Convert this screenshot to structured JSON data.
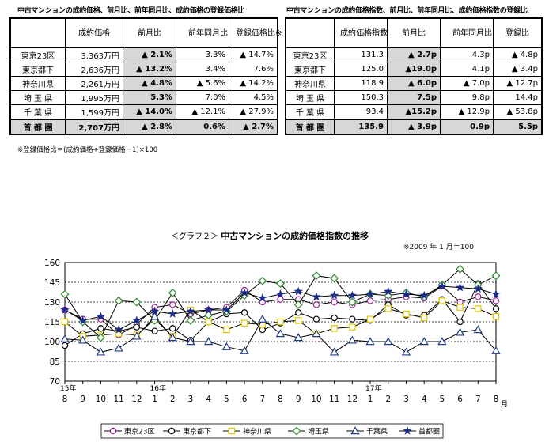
{
  "table1": {
    "title": "中古マンションの成約価格、前月比、前年同月比、成約価格の登録価格比",
    "headers": [
      "",
      "成約価格",
      "前月比",
      "前年同月比",
      "登録価格比※"
    ],
    "rows": [
      {
        "area": "東京23区",
        "price": "3,363万円",
        "mom": "▲ 2.1%",
        "yoy": "3.3%",
        "reg": "▲ 14.7%"
      },
      {
        "area": "東京都下",
        "price": "2,636万円",
        "mom": "▲ 13.2%",
        "yoy": "3.4%",
        "reg": "7.6%"
      },
      {
        "area": "神奈川県",
        "price": "2,261万円",
        "mom": "▲ 4.8%",
        "yoy": "▲ 5.6%",
        "reg": "▲ 14.2%"
      },
      {
        "area": "埼 玉 県",
        "price": "1,995万円",
        "mom": "5.3%",
        "yoy": "7.0%",
        "reg": "4.5%"
      },
      {
        "area": "千 葉 県",
        "price": "1,599万円",
        "mom": "▲ 14.0%",
        "yoy": "▲ 12.1%",
        "reg": "▲ 27.9%"
      },
      {
        "area": "首 都 圏",
        "price": "2,707万円",
        "mom": "▲ 2.8%",
        "yoy": "0.6%",
        "reg": "▲ 2.7%"
      }
    ],
    "note": "※登録価格比＝(成約価格÷登録価格－1)×100"
  },
  "table2": {
    "title": "中古マンションの成約価格指数、前月比、前年同月比、成約価格指数の登録比",
    "headers": [
      "",
      "成約価格指数",
      "前月比",
      "前年同月比",
      "登録比"
    ],
    "rows": [
      {
        "area": "東京23区",
        "index": "131.3",
        "mom": "▲ 2.7p",
        "yoy": "4.3p",
        "reg": "▲ 4.8p"
      },
      {
        "area": "東京都下",
        "index": "125.0",
        "mom": "▲19.0p",
        "yoy": "4.1p",
        "reg": "▲ 3.4p"
      },
      {
        "area": "神奈川県",
        "index": "118.9",
        "mom": "▲ 6.0p",
        "yoy": "▲ 7.0p",
        "reg": "▲ 12.7p"
      },
      {
        "area": "埼 玉 県",
        "index": "150.3",
        "mom": "7.5p",
        "yoy": "9.8p",
        "reg": "14.4p"
      },
      {
        "area": "千 葉 県",
        "index": "93.4",
        "mom": "▲15.2p",
        "yoy": "▲ 12.9p",
        "reg": "▲ 53.8p"
      },
      {
        "area": "首 都 圏",
        "index": "135.9",
        "mom": "▲ 3.9p",
        "yoy": "0.9p",
        "reg": "5.5p"
      }
    ]
  },
  "graph": {
    "label": "＜グラフ２＞",
    "title": "中古マンションの成約価格指数の推移",
    "base_note": "※2009 年 1 月＝100"
  },
  "chart_data": {
    "type": "line",
    "title": "中古マンションの成約価格指数の推移",
    "ylim": [
      70,
      160
    ],
    "yticks": [
      70,
      85,
      100,
      115,
      130,
      145,
      160
    ],
    "categories": [
      "8",
      "9",
      "10",
      "11",
      "12",
      "1",
      "2",
      "3",
      "4",
      "5",
      "6",
      "7",
      "8",
      "9",
      "10",
      "11",
      "12",
      "1",
      "2",
      "3",
      "4",
      "5",
      "6",
      "7",
      "8"
    ],
    "year_labels": [
      {
        "index": 0,
        "text": "15年"
      },
      {
        "index": 5,
        "text": "16年"
      },
      {
        "index": 17,
        "text": "17年"
      }
    ],
    "x_unit": "月",
    "series": [
      {
        "name": "東京23区",
        "color": "#9b1f9b",
        "marker": "circle-open",
        "values": [
          124,
          117,
          117,
          105,
          113,
          126,
          128,
          121,
          124,
          126,
          139,
          130,
          132,
          132,
          128,
          130,
          128,
          131,
          132,
          134,
          133,
          142,
          130,
          134,
          131
        ]
      },
      {
        "name": "東京都下",
        "color": "#000000",
        "marker": "circle-open",
        "values": [
          97,
          106,
          110,
          108,
          111,
          108,
          110,
          101,
          115,
          121,
          122,
          109,
          114,
          122,
          117,
          118,
          117,
          116,
          128,
          120,
          120,
          132,
          115,
          144,
          125
        ]
      },
      {
        "name": "神奈川県",
        "color": "#e0c800",
        "marker": "square-open",
        "values": [
          115,
          104,
          105,
          106,
          105,
          117,
          104,
          124,
          115,
          109,
          114,
          113,
          115,
          116,
          106,
          110,
          111,
          117,
          125,
          121,
          118,
          131,
          126,
          125,
          119
        ]
      },
      {
        "name": "埼玉県",
        "color": "#2e8b2e",
        "marker": "diamond-open",
        "values": [
          136,
          115,
          103,
          131,
          130,
          116,
          137,
          116,
          120,
          123,
          135,
          146,
          144,
          128,
          150,
          148,
          130,
          136,
          135,
          137,
          134,
          143,
          155,
          143,
          150
        ]
      },
      {
        "name": "千葉県",
        "color": "#1f3a8a",
        "marker": "triangle-open",
        "values": [
          102,
          101,
          92,
          95,
          104,
          119,
          103,
          100,
          100,
          96,
          93,
          117,
          106,
          103,
          106,
          92,
          101,
          100,
          100,
          92,
          100,
          100,
          107,
          109,
          93
        ]
      },
      {
        "name": "首都圏",
        "color": "#1c2c8c",
        "marker": "star",
        "values": [
          124,
          116,
          119,
          109,
          116,
          123,
          121,
          123,
          124,
          124,
          137,
          133,
          136,
          138,
          134,
          135,
          135,
          136,
          138,
          136,
          135,
          142,
          141,
          140,
          136
        ]
      }
    ]
  }
}
